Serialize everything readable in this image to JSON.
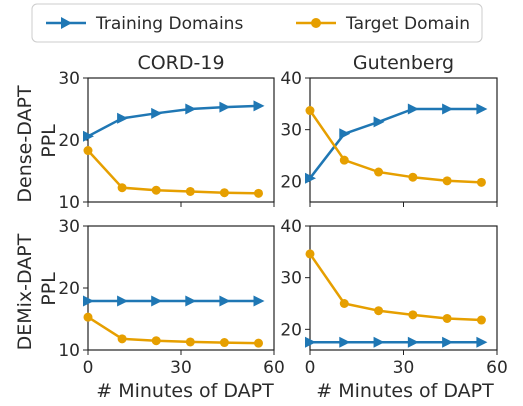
{
  "legend": {
    "placement": "top-center",
    "entries": [
      {
        "label": "Training Domains",
        "color": "#1f77b4",
        "marker": "triangle-right"
      },
      {
        "label": "Target Domain",
        "color": "#e69f00",
        "marker": "circle"
      }
    ]
  },
  "xlabel": "# Minutes of DAPT",
  "row_labels": [
    "Dense-DAPT\nPPL",
    "DEMix-DAPT\nPPL"
  ],
  "column_titles": [
    "CORD-19",
    "Gutenberg"
  ],
  "chart_data": [
    {
      "type": "line",
      "panel": "Dense-DAPT / CORD-19",
      "title": "CORD-19",
      "xlim": [
        0,
        60
      ],
      "xticks": [
        0,
        30,
        60
      ],
      "ylim": [
        10,
        30
      ],
      "yticks": [
        10,
        20,
        30
      ],
      "grid": false,
      "series": [
        {
          "name": "Training Domains",
          "x": [
            0,
            11,
            22,
            33,
            44,
            55
          ],
          "values": [
            20.6,
            23.5,
            24.3,
            25.0,
            25.3,
            25.5
          ]
        },
        {
          "name": "Target Domain",
          "x": [
            0,
            11,
            22,
            33,
            44,
            55
          ],
          "values": [
            18.3,
            12.3,
            11.9,
            11.7,
            11.5,
            11.4
          ]
        }
      ]
    },
    {
      "type": "line",
      "panel": "Dense-DAPT / Gutenberg",
      "title": "Gutenberg",
      "xlim": [
        0,
        60
      ],
      "xticks": [
        0,
        30,
        60
      ],
      "ylim": [
        16,
        40
      ],
      "yticks": [
        20,
        30,
        40
      ],
      "grid": false,
      "series": [
        {
          "name": "Training Domains",
          "x": [
            0,
            11,
            22,
            33,
            44,
            55
          ],
          "values": [
            20.6,
            29.2,
            31.5,
            34.0,
            34.0,
            34.0
          ]
        },
        {
          "name": "Target Domain",
          "x": [
            0,
            11,
            22,
            33,
            44,
            55
          ],
          "values": [
            33.7,
            24.1,
            21.8,
            20.8,
            20.1,
            19.8
          ]
        }
      ]
    },
    {
      "type": "line",
      "panel": "DEMix-DAPT / CORD-19",
      "title": "",
      "xlim": [
        0,
        60
      ],
      "xticks": [
        0,
        30,
        60
      ],
      "ylim": [
        10,
        30
      ],
      "yticks": [
        10,
        20,
        30
      ],
      "grid": false,
      "series": [
        {
          "name": "Training Domains",
          "x": [
            0,
            11,
            22,
            33,
            44,
            55
          ],
          "values": [
            17.9,
            17.9,
            17.9,
            17.9,
            17.9,
            17.9
          ]
        },
        {
          "name": "Target Domain",
          "x": [
            0,
            11,
            22,
            33,
            44,
            55
          ],
          "values": [
            15.3,
            11.8,
            11.5,
            11.3,
            11.2,
            11.1
          ]
        }
      ]
    },
    {
      "type": "line",
      "panel": "DEMix-DAPT / Gutenberg",
      "title": "",
      "xlim": [
        0,
        60
      ],
      "xticks": [
        0,
        30,
        60
      ],
      "ylim": [
        16,
        40
      ],
      "yticks": [
        20,
        30,
        40
      ],
      "grid": false,
      "series": [
        {
          "name": "Training Domains",
          "x": [
            0,
            11,
            22,
            33,
            44,
            55
          ],
          "values": [
            17.5,
            17.5,
            17.5,
            17.5,
            17.5,
            17.5
          ]
        },
        {
          "name": "Target Domain",
          "x": [
            0,
            11,
            22,
            33,
            44,
            55
          ],
          "values": [
            34.6,
            25.0,
            23.6,
            22.8,
            22.1,
            21.8
          ]
        }
      ]
    }
  ]
}
